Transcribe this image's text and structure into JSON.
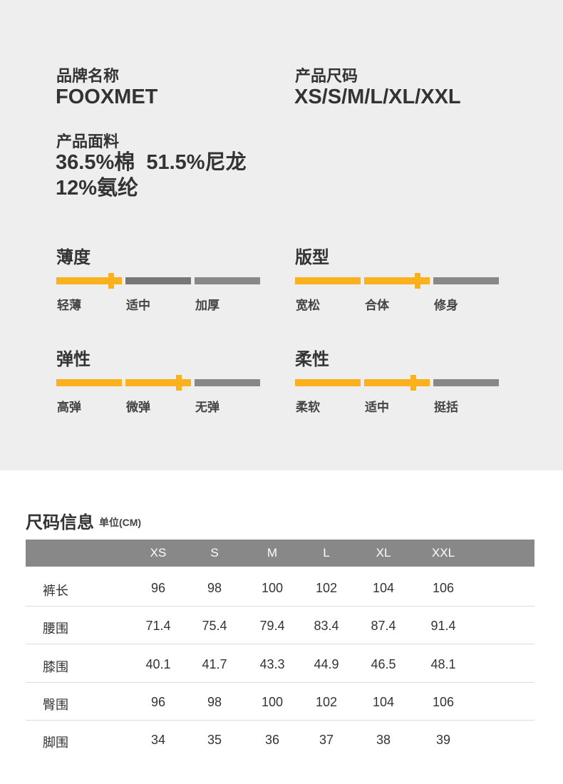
{
  "colors": {
    "accent": "#fbb11b",
    "dark_segment": "#777777",
    "light_segment": "#888888",
    "top_background": "#eeeeee",
    "table_header": "#888888"
  },
  "specs": {
    "brand_label": "品牌名称",
    "brand_value": "FOOXMET",
    "size_label": "产品尺码",
    "size_value": "XS/S/M/L/XL/XXL",
    "fabric_label": "产品面料",
    "fabric_line1": "36.5%棉  51.5%尼龙",
    "fabric_line2": "12%氨纶"
  },
  "scales": [
    {
      "title": "薄度",
      "labels": [
        "轻薄",
        "适中",
        "加厚"
      ],
      "level": 0.27
    },
    {
      "title": "版型",
      "labels": [
        "宽松",
        "合体",
        "修身"
      ],
      "level": 0.6
    },
    {
      "title": "弹性",
      "labels": [
        "高弹",
        "微弹",
        "无弹"
      ],
      "level": 0.6
    },
    {
      "title": "柔性",
      "labels": [
        "柔软",
        "适中",
        "挺括"
      ],
      "level": 0.58
    }
  ],
  "size_table": {
    "title": "尺码信息",
    "unit": "单位(CM)",
    "columns": [
      "XS",
      "S",
      "M",
      "L",
      "XL",
      "XXL"
    ],
    "rows": [
      {
        "label": "裤长",
        "values": [
          "96",
          "98",
          "100",
          "102",
          "104",
          "106"
        ]
      },
      {
        "label": "腰围",
        "values": [
          "71.4",
          "75.4",
          "79.4",
          "83.4",
          "87.4",
          "91.4"
        ]
      },
      {
        "label": "膝围",
        "values": [
          "40.1",
          "41.7",
          "43.3",
          "44.9",
          "46.5",
          "48.1"
        ]
      },
      {
        "label": "臀围",
        "values": [
          "96",
          "98",
          "100",
          "102",
          "104",
          "106"
        ]
      },
      {
        "label": "脚围",
        "values": [
          "34",
          "35",
          "36",
          "37",
          "38",
          "39"
        ]
      }
    ]
  }
}
